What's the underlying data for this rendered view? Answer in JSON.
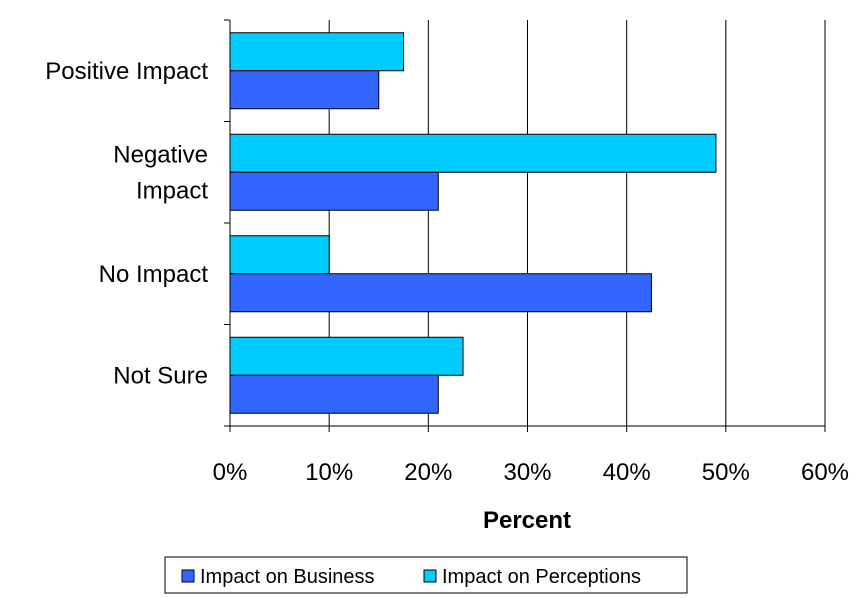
{
  "chart_data": {
    "type": "bar",
    "orientation": "horizontal",
    "categories": [
      "Positive Impact",
      "Negative Impact",
      "No Impact",
      "Not Sure"
    ],
    "category_label_lines": [
      [
        "Positive Impact"
      ],
      [
        "Negative",
        "Impact"
      ],
      [
        "No Impact"
      ],
      [
        "Not Sure"
      ]
    ],
    "series": [
      {
        "name": "Impact on Business",
        "values": [
          15,
          21,
          42.5,
          21
        ],
        "color": "#3366ff"
      },
      {
        "name": "Impact on Perceptions",
        "values": [
          17.5,
          49,
          10,
          23.5
        ],
        "color": "#00ccff"
      }
    ],
    "xlabel": "Percent",
    "ylabel": "",
    "xlim": [
      0,
      60
    ],
    "xticks": [
      "0%",
      "10%",
      "20%",
      "30%",
      "40%",
      "50%",
      "60%"
    ],
    "grid": "vertical",
    "legend_position": "bottom"
  }
}
